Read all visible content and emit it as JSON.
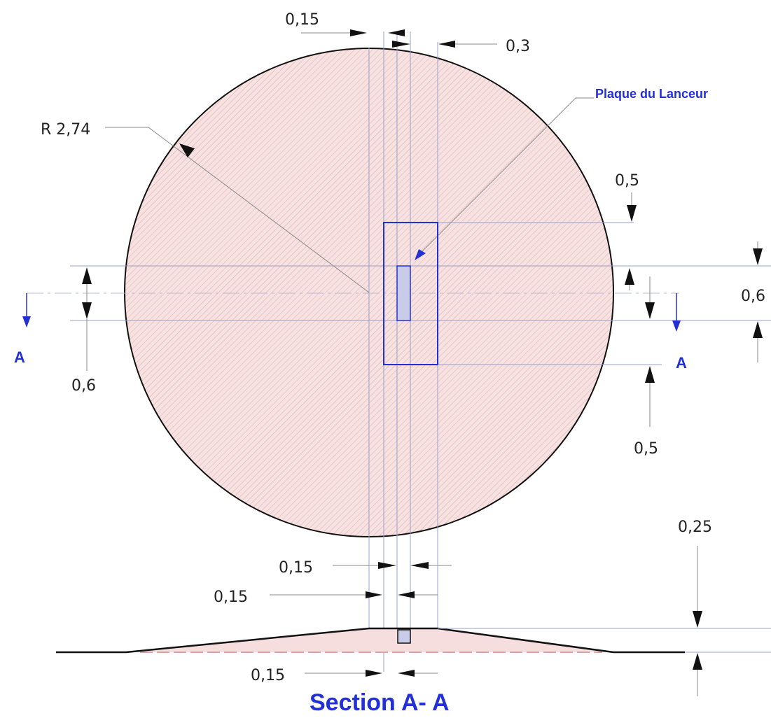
{
  "diagram": {
    "plate_label": "Plaque du Lanceur",
    "radius_label": "R 2,74",
    "section_marker": "A",
    "section_title": "Section A- A",
    "dimensions": {
      "top_left": "0,15",
      "top_right": "0,3",
      "right_upper": "0,5",
      "right_lower": "0,5",
      "right_edge": "0,6",
      "left_mid": "0,6",
      "bottom_first": "0,15",
      "bottom_second": "0,15",
      "section_height": "0,25",
      "section_width": "0,15"
    }
  },
  "colors": {
    "mound_fill": "#f6dede",
    "hatch": "#e3a3a3",
    "blue": "#2230d6",
    "plate_fill": "#c8cce8"
  }
}
